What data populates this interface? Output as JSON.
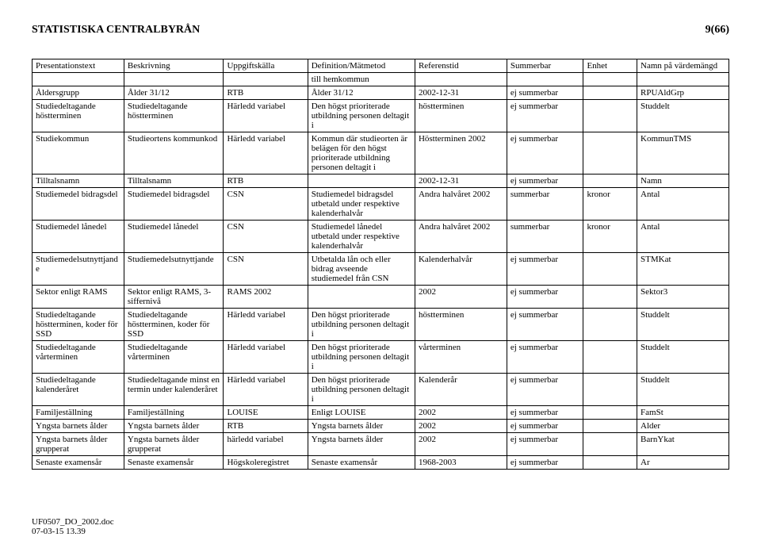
{
  "header": {
    "title": "STATISTISKA CENTRALBYRÅN",
    "page": "9(66)"
  },
  "table": {
    "columns": [
      "Presentationstext",
      "Beskrivning",
      "Uppgiftskälla",
      "Definition/Mätmetod",
      "Referenstid",
      "Summerbar",
      "Enhet",
      "Namn på värdemängd"
    ],
    "rows": [
      [
        "",
        "",
        "",
        "till hemkommun",
        "",
        "",
        "",
        ""
      ],
      [
        "Åldersgrupp",
        "Ålder 31/12",
        "RTB",
        "Ålder 31/12",
        "2002-12-31",
        "ej summerbar",
        "",
        "RPUAldGrp"
      ],
      [
        "Studiedeltagande höstterminen",
        "Studiedeltagande höstterminen",
        "Härledd variabel",
        "Den högst prioriterade utbildning personen deltagit i",
        "höstterminen",
        "ej summerbar",
        "",
        "Studdelt"
      ],
      [
        "Studiekommun",
        "Studieortens kommunkod",
        "Härledd variabel",
        "Kommun där studieorten är belägen för den högst prioriterade utbildning personen deltagit i",
        "Höstterminen 2002",
        "ej summerbar",
        "",
        "KommunTMS"
      ],
      [
        "Tilltalsnamn",
        "Tilltalsnamn",
        "RTB",
        "",
        "2002-12-31",
        "ej summerbar",
        "",
        "Namn"
      ],
      [
        "Studiemedel bidragsdel",
        "Studiemedel bidragsdel",
        "CSN",
        "Studiemedel bidragsdel utbetald under respektive kalenderhalvår",
        "Andra halvåret 2002",
        "summerbar",
        "kronor",
        "Antal"
      ],
      [
        "Studiemedel lånedel",
        "Studiemedel lånedel",
        "CSN",
        "Studiemedel lånedel utbetald under respektive kalenderhalvår",
        "Andra halvåret 2002",
        "summerbar",
        "kronor",
        "Antal"
      ],
      [
        "Studiemedelsutnyttjande",
        "Studiemedelsutnyttjande",
        "CSN",
        "Utbetalda lån och eller bidrag avseende studiemedel från CSN",
        "Kalenderhalvår",
        "ej summerbar",
        "",
        "STMKat"
      ],
      [
        "Sektor enligt RAMS",
        "Sektor enligt RAMS, 3-siffernivå",
        "RAMS 2002",
        "",
        "2002",
        "ej summerbar",
        "",
        "Sektor3"
      ],
      [
        "Studiedeltagande höstterminen, koder för SSD",
        "Studiedeltagande höstterminen, koder för SSD",
        "Härledd variabel",
        "Den högst prioriterade utbildning personen deltagit i",
        "höstterminen",
        "ej summerbar",
        "",
        "Studdelt"
      ],
      [
        "Studiedeltagande vårterminen",
        "Studiedeltagande vårterminen",
        "Härledd variabel",
        "Den högst prioriterade utbildning personen deltagit i",
        "vårterminen",
        "ej summerbar",
        "",
        "Studdelt"
      ],
      [
        "Studiedeltagande kalenderåret",
        "Studiedeltagande minst en termin under kalenderåret",
        "Härledd variabel",
        "Den högst prioriterade utbildning personen deltagit i",
        "Kalenderår",
        "ej summerbar",
        "",
        "Studdelt"
      ],
      [
        "Familjeställning",
        "Familjeställning",
        "LOUISE",
        "Enligt LOUISE",
        "2002",
        "ej summerbar",
        "",
        "FamSt"
      ],
      [
        "Yngsta barnets ålder",
        "Yngsta barnets ålder",
        "RTB",
        "Yngsta barnets ålder",
        "2002",
        "ej summerbar",
        "",
        "Alder"
      ],
      [
        "Yngsta barnets ålder grupperat",
        "Yngsta barnets ålder grupperat",
        "härledd variabel",
        "Yngsta barnets ålder",
        "2002",
        "ej summerbar",
        "",
        "BarnYkat"
      ],
      [
        "Senaste examensår",
        "Senaste examensår",
        "Högskoleregistret",
        "Senaste examensår",
        "1968-2003",
        "ej summerbar",
        "",
        "Ar"
      ]
    ]
  },
  "footer": {
    "line1": "UF0507_DO_2002.doc",
    "line2": "07-03-15 13.39"
  }
}
